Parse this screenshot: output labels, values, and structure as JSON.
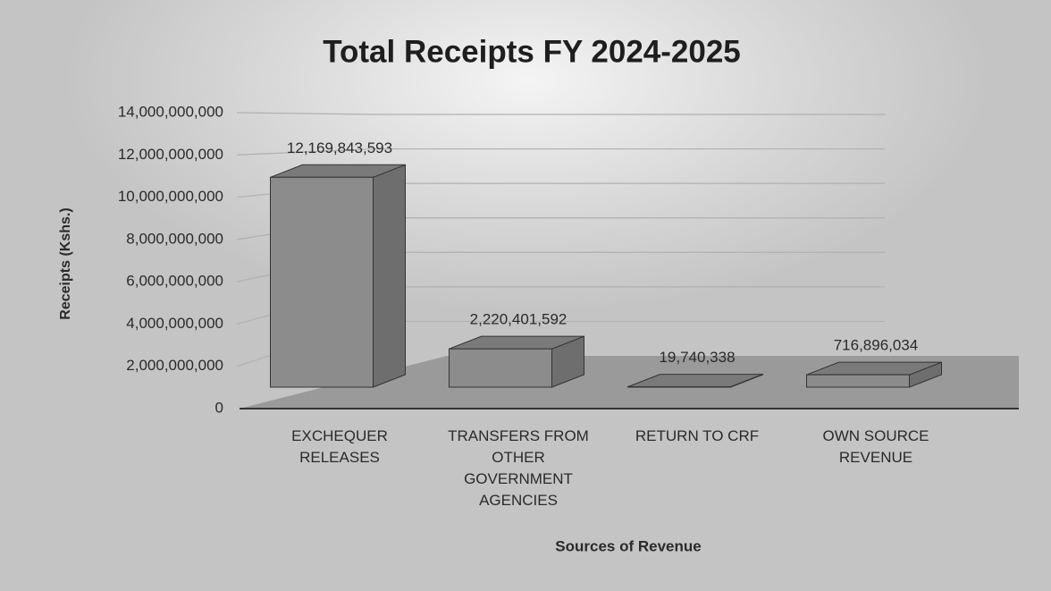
{
  "chart_data": {
    "type": "bar3d",
    "title": "Total Receipts FY 2024-2025",
    "categories": [
      "EXCHEQUER\nRELEASES",
      "TRANSFERS FROM\nOTHER\nGOVERNMENT\nAGENCIES",
      "RETURN TO CRF",
      "OWN SOURCE\nREVENUE"
    ],
    "values": [
      12169843593,
      2220401592,
      19740338,
      716896034
    ],
    "value_labels": [
      "12,169,843,593",
      "2,220,401,592",
      "19,740,338",
      "716,896,034"
    ],
    "x_label": "Sources of Revenue",
    "y_label": "Receipts (Kshs.)",
    "color": "#8c8c8c",
    "ylim": [
      0,
      14000000000
    ],
    "yticks": [
      0,
      {
        "value": 2000000000,
        "label": "2,000,000,000"
      },
      {
        "value": 4000000000,
        "label": "4,000,000,000"
      },
      {
        "value": 6000000000,
        "label": "6,000,000,000"
      },
      {
        "value": 8000000000,
        "label": "8,000,000,000"
      },
      {
        "value": 10000000000,
        "label": "10,000,000,000"
      },
      {
        "value": 12000000000,
        "label": "12,000,000,000"
      },
      {
        "value": 14000000000,
        "label": "14,000,000,000"
      }
    ],
    "grid": true
  }
}
